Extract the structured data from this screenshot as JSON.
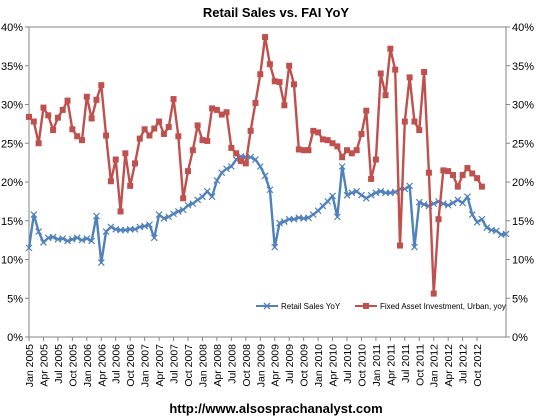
{
  "chart_data": {
    "type": "line",
    "title": "Retail Sales vs. FAI YoY",
    "source": "http://www.alsosprachanalyst.com",
    "ylim": [
      0,
      40
    ],
    "y_ticks": [
      "0%",
      "5%",
      "10%",
      "15%",
      "20%",
      "25%",
      "30%",
      "35%",
      "40%"
    ],
    "x_axis_labels": [
      "Jan 2005",
      "Apr 2005",
      "Jul 2005",
      "Oct 2005",
      "Jan 2006",
      "Apr 2006",
      "Jul 2006",
      "Oct 2006",
      "Jan 2007",
      "Apr 2007",
      "Jul 2007",
      "Oct 2007",
      "Jan 2008",
      "Apr 2008",
      "Jul 2008",
      "Oct 2008",
      "Jan 2009",
      "Apr 2009",
      "Jul 2009",
      "Oct 2009",
      "Jan 2010",
      "Apr 2010",
      "Jul 2010",
      "Oct 2010",
      "Jan 2011",
      "Apr 2011",
      "Jul 2011",
      "Oct 2011",
      "Jan 2012",
      "Apr 2012",
      "Jul 2012",
      "Oct 2012"
    ],
    "grid": false,
    "legend_position": "bottom-right",
    "series": [
      {
        "name": "Retail Sales YoY",
        "color": "#4f81bd",
        "marker": "x",
        "values": [
          11.5,
          15.8,
          13.6,
          12.2,
          12.8,
          12.9,
          12.6,
          12.7,
          12.4,
          12.6,
          12.8,
          12.5,
          12.7,
          12.4,
          15.6,
          9.6,
          13.6,
          14.2,
          13.9,
          13.8,
          13.8,
          13.9,
          13.9,
          14.2,
          14.3,
          14.5,
          12.8,
          15.8,
          15.3,
          15.5,
          15.9,
          16.2,
          16.4,
          17.0,
          17.2,
          17.7,
          18.1,
          18.8,
          18.1,
          20.2,
          21.2,
          21.7,
          22.0,
          22.9,
          23.3,
          23.2,
          23.2,
          22.9,
          22.0,
          20.8,
          19.0,
          11.6,
          14.7,
          14.9,
          15.2,
          15.2,
          15.4,
          15.3,
          15.4,
          15.8,
          16.3,
          16.9,
          17.5,
          18.2,
          15.5,
          22.0,
          18.3,
          18.6,
          18.8,
          18.3,
          17.9,
          18.3,
          18.6,
          18.8,
          18.6,
          18.6,
          18.7,
          19.1,
          19.1,
          19.5,
          11.6,
          17.4,
          17.1,
          16.9,
          17.2,
          17.5,
          17.2,
          17.0,
          17.3,
          17.7,
          17.3,
          18.1,
          15.8,
          14.8,
          15.2,
          14.1,
          13.8,
          13.7,
          13.2,
          13.3
        ]
      },
      {
        "name": "Fixed Asset Investment, Urban, yoy",
        "color": "#c0504d",
        "marker": "square",
        "values": [
          28.4,
          27.8,
          25.0,
          29.6,
          28.6,
          26.7,
          28.3,
          29.3,
          30.5,
          26.8,
          25.9,
          25.4,
          31.0,
          28.2,
          30.6,
          32.5,
          26.0,
          20.1,
          22.9,
          16.2,
          23.7,
          19.5,
          22.4,
          25.6,
          26.8,
          26.0,
          26.9,
          27.8,
          26.2,
          27.1,
          30.7,
          25.9,
          17.9,
          21.4,
          24.1,
          27.3,
          25.4,
          25.3,
          29.5,
          29.3,
          28.7,
          29.0,
          24.4,
          23.7,
          22.7,
          22.4,
          26.6,
          30.2,
          33.9,
          38.7,
          35.2,
          33.0,
          32.9,
          29.9,
          35.0,
          32.6,
          24.2,
          24.1,
          24.1,
          26.6,
          26.4,
          25.5,
          25.4,
          25.0,
          24.6,
          23.2,
          24.1,
          23.7,
          24.1,
          26.2,
          29.2,
          20.4,
          22.9,
          34.0,
          31.2,
          37.2,
          34.5,
          11.8,
          27.8,
          33.5,
          27.8,
          26.7,
          34.2,
          21.2,
          5.6,
          15.2,
          21.5,
          21.4,
          20.9,
          19.4,
          20.9,
          21.8,
          21.1,
          20.5,
          19.4
        ]
      }
    ]
  }
}
